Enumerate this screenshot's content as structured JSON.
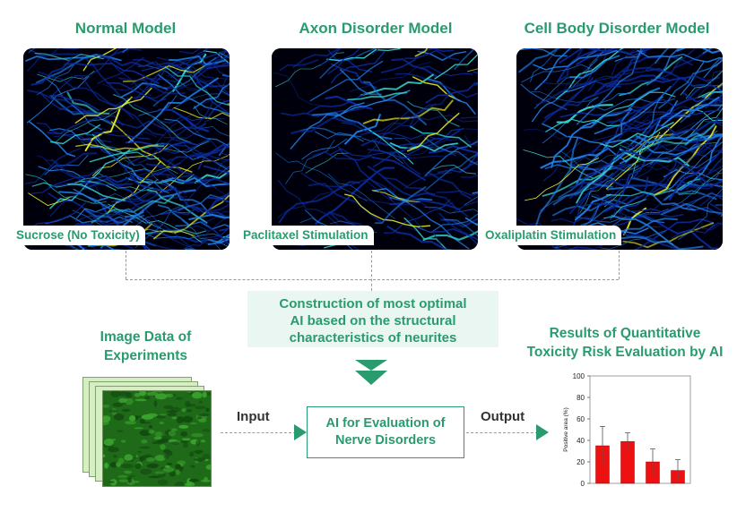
{
  "models": [
    {
      "title": "Normal Model",
      "tag": "Sucrose (No Toxicity)"
    },
    {
      "title": "Axon Disorder Model",
      "tag": "Paclitaxel Stimulation"
    },
    {
      "title": "Cell Body Disorder Model",
      "tag": "Oxaliplatin Stimulation"
    }
  ],
  "ai_construction": {
    "line1": "Construction of most optimal",
    "line2": "AI based on the structural",
    "line3": "characteristics of neurites"
  },
  "image_data": {
    "line1": "Image Data of",
    "line2": "Experiments"
  },
  "input_label": "Input",
  "output_label": "Output",
  "ai_eval": {
    "line1": "AI for Evaluation of",
    "line2": "Nerve Disorders"
  },
  "results": {
    "line1": "Results of Quantitative",
    "line2": "Toxicity Risk Evaluation by AI"
  },
  "colors": {
    "accent": "#2a9b6f",
    "accent_light": "#e9f6f1",
    "bar": "#ee1111",
    "neurite_base": "#0a2a9a",
    "neurite_glow": "#e8f020"
  },
  "chart_data": {
    "type": "bar",
    "ylabel": "Positive area (%)",
    "ylim": [
      0,
      100
    ],
    "yticks": [
      0,
      20,
      40,
      60,
      80,
      100
    ],
    "values": [
      35,
      39,
      20,
      12
    ],
    "errors": [
      18,
      8,
      12,
      10
    ]
  }
}
